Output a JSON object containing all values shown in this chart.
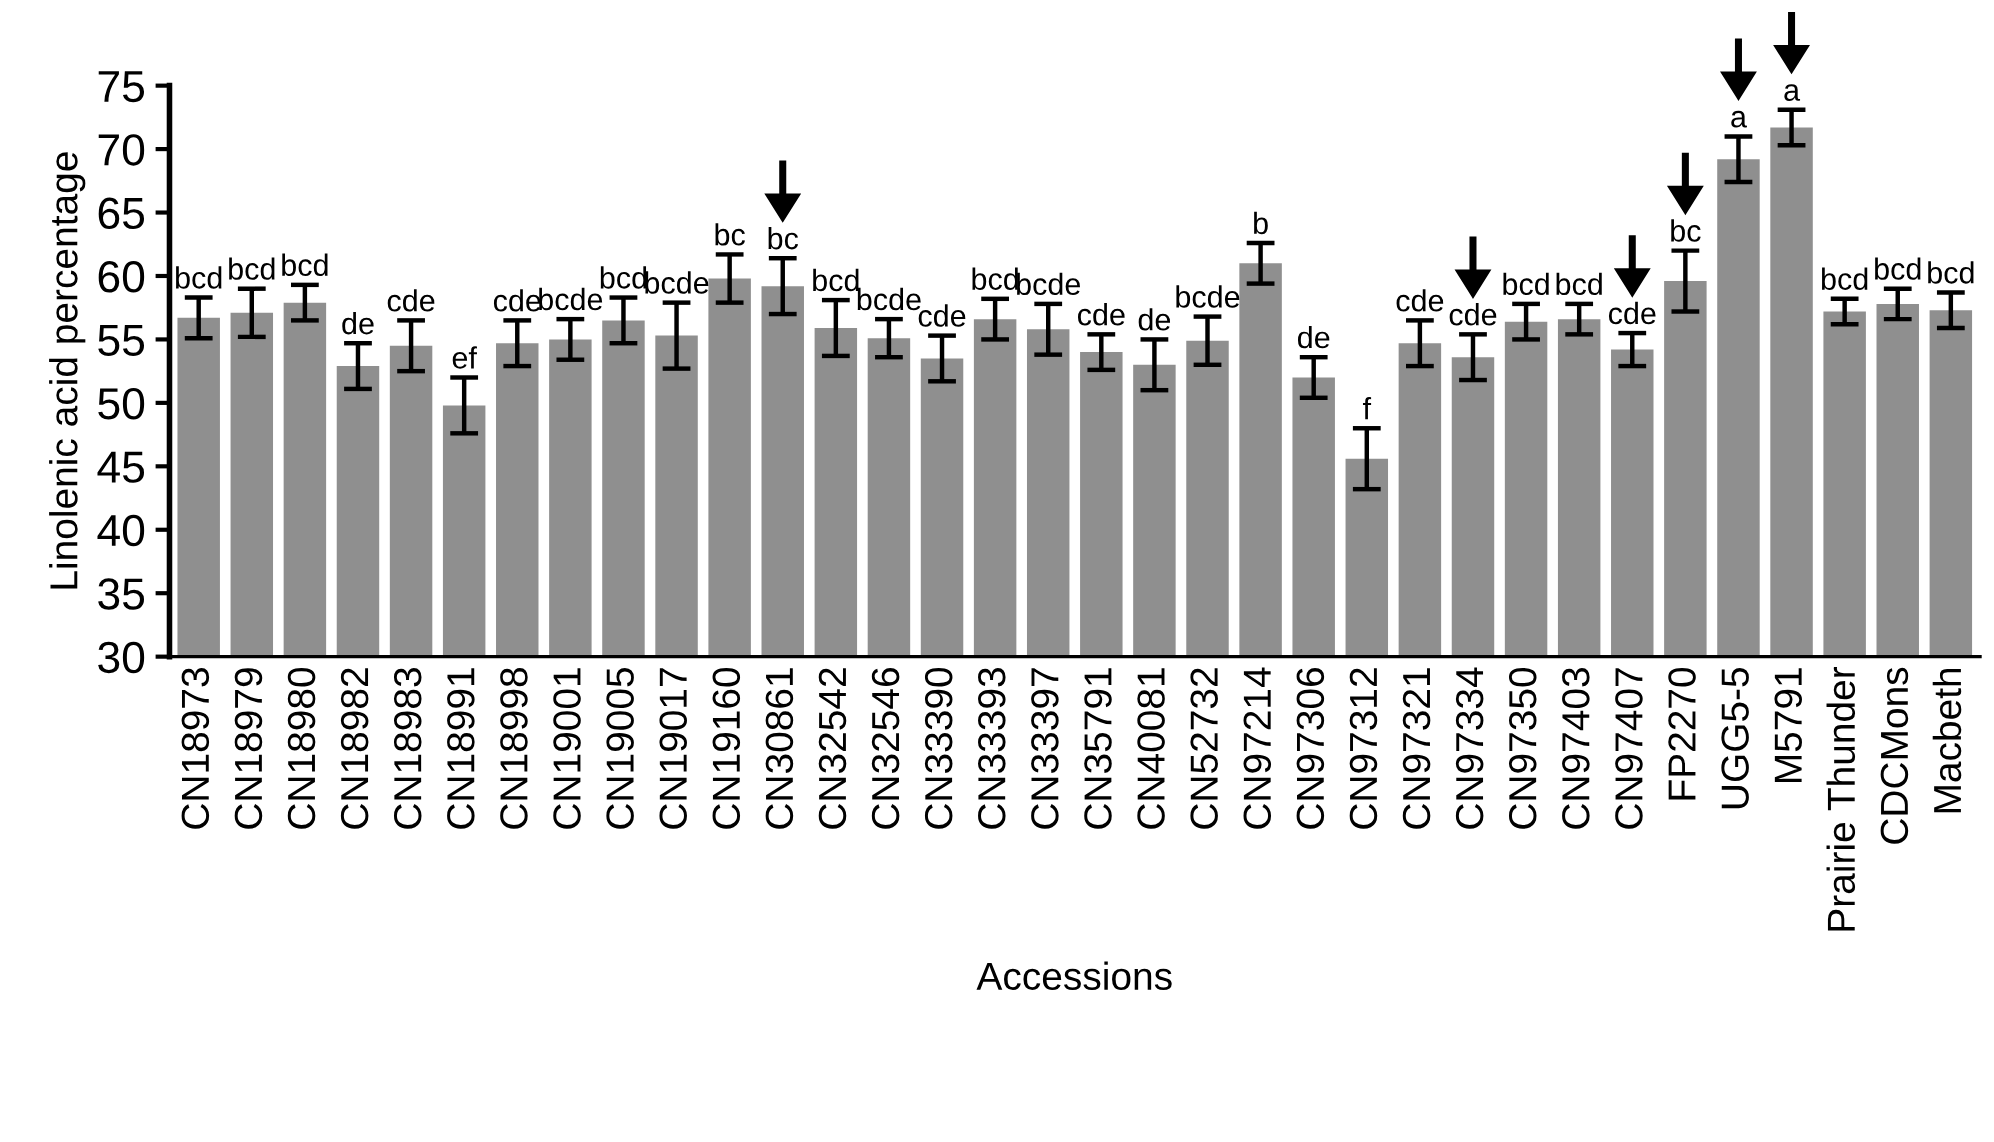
{
  "chart_data": {
    "type": "bar",
    "xlabel": "Accessions",
    "ylabel": "Linolenic acid percentage",
    "categories": [
      "CN18973",
      "CN18979",
      "CN18980",
      "CN18982",
      "CN18983",
      "CN18991",
      "CN18998",
      "CN19001",
      "CN19005",
      "CN19017",
      "CN19160",
      "CN30861",
      "CN32542",
      "CN32546",
      "CN33390",
      "CN33393",
      "CN33397",
      "CN35791",
      "CN40081",
      "CN52732",
      "CN97214",
      "CN97306",
      "CN97312",
      "CN97321",
      "CN97334",
      "CN97350",
      "CN97403",
      "CN97407",
      "FP2270",
      "UGG5-5",
      "M5791",
      "Prairie Thunder",
      "CDCMons",
      "Macbeth"
    ],
    "values": [
      56.7,
      57.1,
      57.9,
      52.9,
      54.5,
      49.8,
      54.7,
      55.0,
      56.5,
      55.3,
      59.8,
      59.2,
      55.9,
      55.1,
      53.5,
      56.6,
      55.8,
      54.0,
      53.0,
      54.9,
      61.0,
      52.0,
      45.6,
      54.7,
      53.6,
      56.4,
      56.6,
      54.2,
      59.6,
      69.2,
      71.7,
      57.2,
      57.8,
      57.3
    ],
    "errors": [
      1.6,
      1.9,
      1.4,
      1.8,
      2.0,
      2.2,
      1.8,
      1.6,
      1.8,
      2.6,
      1.9,
      2.2,
      2.2,
      1.5,
      1.8,
      1.6,
      2.0,
      1.4,
      2.0,
      1.9,
      1.6,
      1.6,
      2.4,
      1.8,
      1.8,
      1.4,
      1.2,
      1.3,
      2.4,
      1.8,
      1.4,
      1.0,
      1.2,
      1.4
    ],
    "color": "#8f8f8f",
    "ylim": [
      30,
      75
    ],
    "yticks": [
      30,
      35,
      40,
      45,
      50,
      55,
      60,
      65,
      70,
      75
    ],
    "grid": false,
    "annotations": [
      {
        "text": "bcd",
        "x": "CN18973",
        "y": 58.3
      },
      {
        "text": "bcd",
        "x": "CN18979",
        "y": 59.0
      },
      {
        "text": "bcd",
        "x": "CN18980",
        "y": 59.3
      },
      {
        "text": "de",
        "x": "CN18982",
        "y": 54.7
      },
      {
        "text": "cde",
        "x": "CN18983",
        "y": 56.5
      },
      {
        "text": "ef",
        "x": "CN18991",
        "y": 52.0
      },
      {
        "text": "cde",
        "x": "CN18998",
        "y": 56.5
      },
      {
        "text": "bcde",
        "x": "CN19001",
        "y": 56.6
      },
      {
        "text": "bcd",
        "x": "CN19005",
        "y": 58.3
      },
      {
        "text": "bcde",
        "x": "CN19017",
        "y": 57.9
      },
      {
        "text": "bc",
        "x": "CN19160",
        "y": 61.7
      },
      {
        "text": "bc",
        "x": "CN30861",
        "y": 61.4
      },
      {
        "text": "bcd",
        "x": "CN32542",
        "y": 58.1
      },
      {
        "text": "bcde",
        "x": "CN32546",
        "y": 56.6
      },
      {
        "text": "cde",
        "x": "CN33390",
        "y": 55.3
      },
      {
        "text": "bcd",
        "x": "CN33393",
        "y": 58.2
      },
      {
        "text": "bcde",
        "x": "CN33397",
        "y": 57.8
      },
      {
        "text": "cde",
        "x": "CN35791",
        "y": 55.4
      },
      {
        "text": "de",
        "x": "CN40081",
        "y": 55.0
      },
      {
        "text": "bcde",
        "x": "CN52732",
        "y": 56.8
      },
      {
        "text": "b",
        "x": "CN97214",
        "y": 62.6
      },
      {
        "text": "de",
        "x": "CN97306",
        "y": 53.6
      },
      {
        "text": "f",
        "x": "CN97312",
        "y": 48.0
      },
      {
        "text": "cde",
        "x": "CN97321",
        "y": 56.5
      },
      {
        "text": "cde",
        "x": "CN97334",
        "y": 55.4
      },
      {
        "text": "bcd",
        "x": "CN97350",
        "y": 57.8
      },
      {
        "text": "bcd",
        "x": "CN97403",
        "y": 57.8
      },
      {
        "text": "cde",
        "x": "CN97407",
        "y": 55.5
      },
      {
        "text": "bc",
        "x": "FP2270",
        "y": 62.0
      },
      {
        "text": "a",
        "x": "UGG5-5",
        "y": 71.0
      },
      {
        "text": "a",
        "x": "M5791",
        "y": 73.1
      },
      {
        "text": "bcd",
        "x": "Prairie Thunder",
        "y": 58.2
      },
      {
        "text": "bcd",
        "x": "CDCMons",
        "y": 59.0
      },
      {
        "text": "bcd",
        "x": "Macbeth",
        "y": 58.7
      }
    ]
  }
}
